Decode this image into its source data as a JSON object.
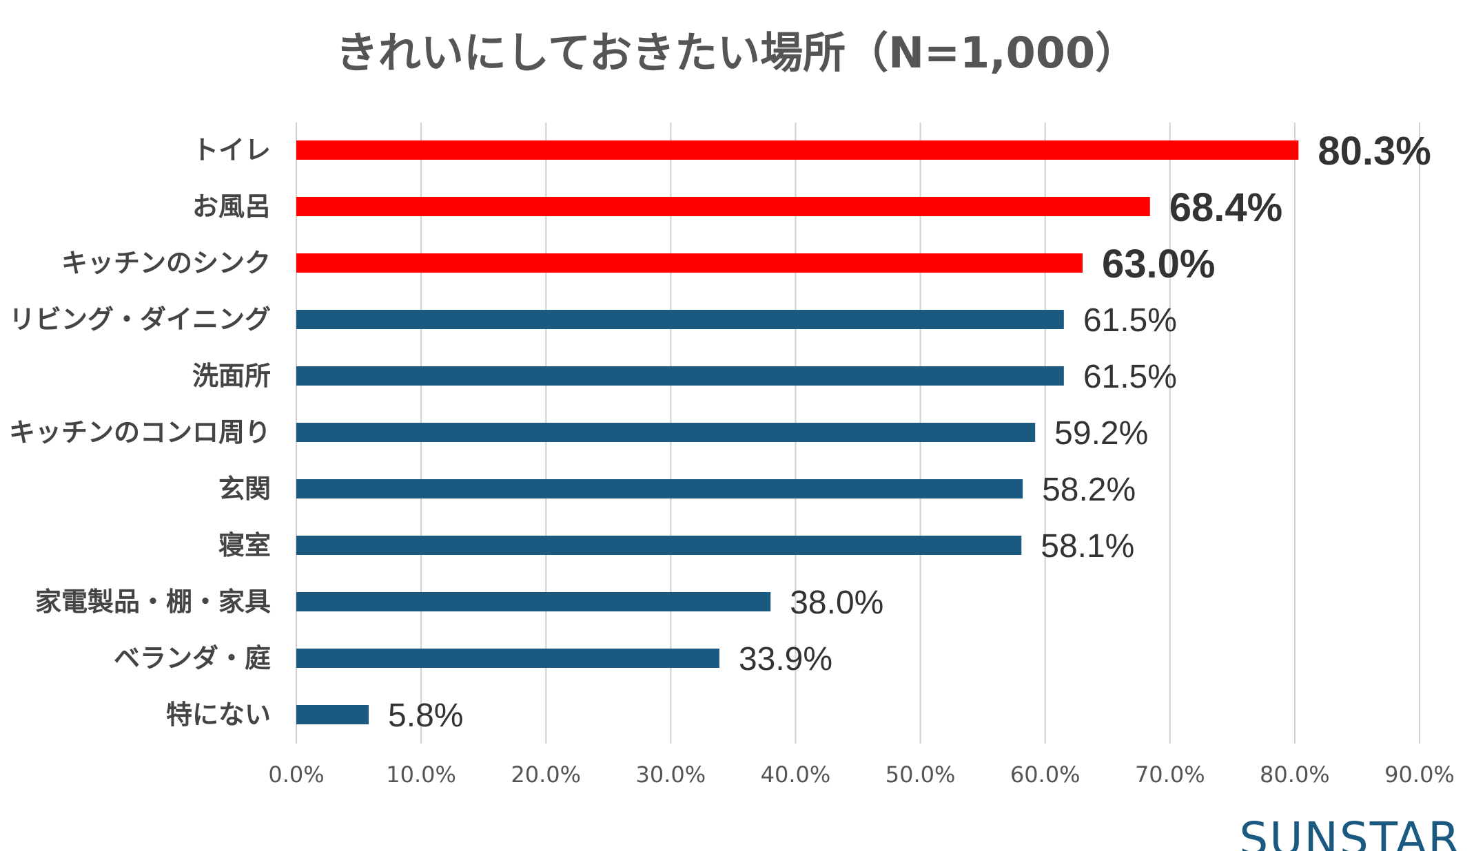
{
  "brand": {
    "logo_text": "SUNSTAR",
    "logo_color": "#1a5a80"
  },
  "colors": {
    "highlight": "#ff0000",
    "default": "#1a5a80",
    "grid": "#d0d0d0"
  },
  "chart_data": {
    "type": "bar",
    "orientation": "horizontal",
    "title": "きれいにしておきたい場所（N=1,000）",
    "xlabel": "",
    "ylabel": "",
    "xlim": [
      0,
      90
    ],
    "ticks": [
      "0.0%",
      "10.0%",
      "20.0%",
      "30.0%",
      "40.0%",
      "50.0%",
      "60.0%",
      "70.0%",
      "80.0%",
      "90.0%"
    ],
    "tick_values": [
      0,
      10,
      20,
      30,
      40,
      50,
      60,
      70,
      80,
      90
    ],
    "grid": true,
    "categories": [
      "トイレ",
      "お風呂",
      "キッチンのシンク",
      "リビング・ダイニング",
      "洗面所",
      "キッチンのコンロ周り",
      "玄関",
      "寝室",
      "家電製品・棚・家具",
      "ベランダ・庭",
      "特にない"
    ],
    "values": [
      80.3,
      68.4,
      63.0,
      61.5,
      61.5,
      59.2,
      58.2,
      58.1,
      38.0,
      33.9,
      5.8
    ],
    "labels": [
      "80.3%",
      "68.4%",
      "63.0%",
      "61.5%",
      "61.5%",
      "59.2%",
      "58.2%",
      "58.1%",
      "38.0%",
      "33.9%",
      "5.8%"
    ],
    "highlight": [
      true,
      true,
      true,
      false,
      false,
      false,
      false,
      false,
      false,
      false,
      false
    ]
  }
}
